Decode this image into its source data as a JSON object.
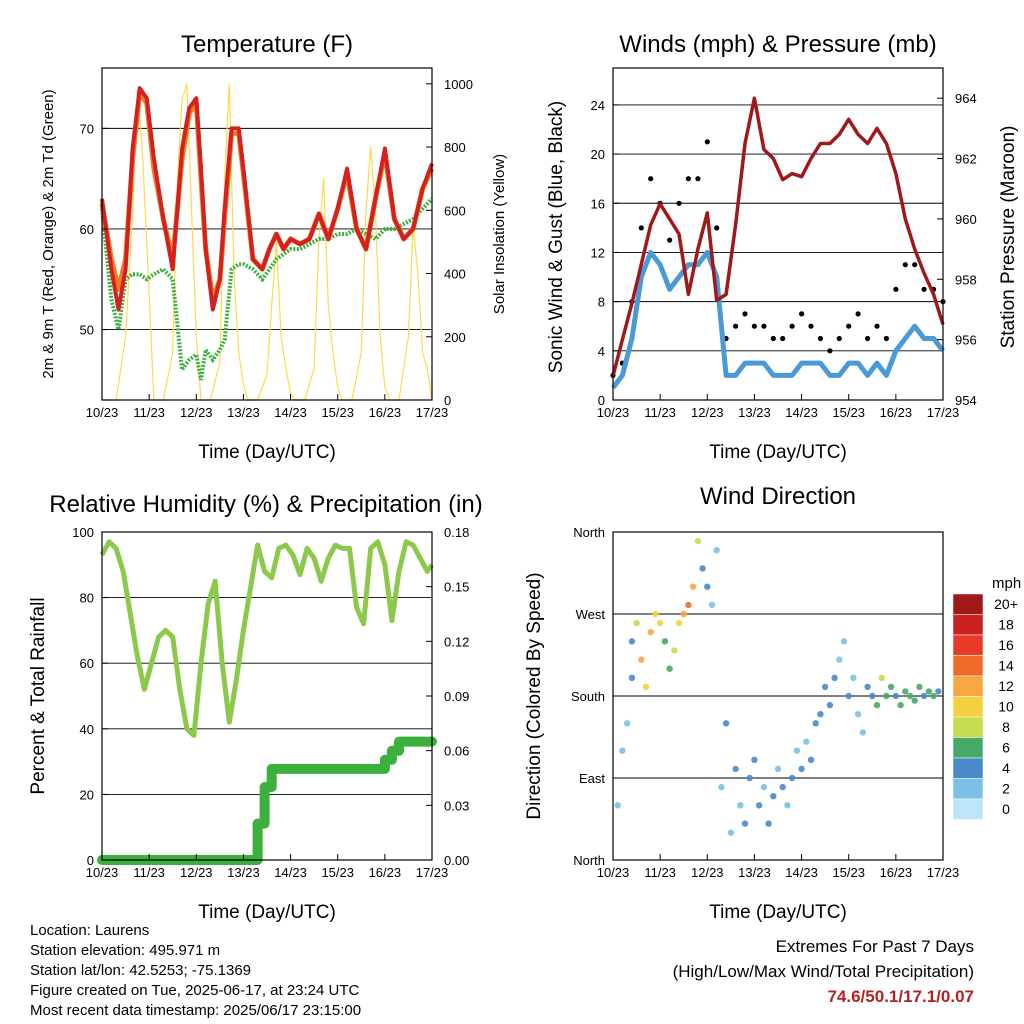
{
  "panels": {
    "temperature": {
      "title": "Temperature (F)",
      "xlabel": "Time (Day/UTC)",
      "ylabel_left": "2m & 9m T (Red, Orange) & 2m Td (Green)",
      "ylabel_right": "Solar Insolation (Yellow)",
      "x_ticks": [
        "10/23",
        "11/23",
        "12/23",
        "13/23",
        "14/23",
        "15/23",
        "16/23",
        "17/23"
      ],
      "y_ticks_left": [
        "50",
        "60",
        "70"
      ],
      "y_ticks_right": [
        "0",
        "200",
        "400",
        "600",
        "800",
        "1000"
      ]
    },
    "winds": {
      "title": "Winds (mph) & Pressure (mb)",
      "xlabel": "Time (Day/UTC)",
      "ylabel_left": "Sonic Wind & Gust (Blue, Black)",
      "ylabel_right": "Station Pressure (Maroon)",
      "x_ticks": [
        "10/23",
        "11/23",
        "12/23",
        "13/23",
        "14/23",
        "15/23",
        "16/23",
        "17/23"
      ],
      "y_ticks_left": [
        "0",
        "4",
        "8",
        "12",
        "16",
        "20",
        "24"
      ],
      "y_ticks_right": [
        "954",
        "956",
        "958",
        "960",
        "962",
        "964"
      ]
    },
    "humidity": {
      "title": "Relative Humidity (%) & Precipitation (in)",
      "xlabel": "Time (Day/UTC)",
      "ylabel_left": "Percent & Total Rainfall",
      "x_ticks": [
        "10/23",
        "11/23",
        "12/23",
        "13/23",
        "14/23",
        "15/23",
        "16/23",
        "17/23"
      ],
      "y_ticks_left": [
        "0",
        "20",
        "40",
        "60",
        "80",
        "100"
      ],
      "y_ticks_right": [
        "0.00",
        "0.03",
        "0.06",
        "0.09",
        "0.12",
        "0.15",
        "0.18"
      ]
    },
    "direction": {
      "title": "Wind Direction",
      "xlabel": "Time (Day/UTC)",
      "ylabel_left": "Direction (Colored By Speed)",
      "x_ticks": [
        "10/23",
        "11/23",
        "12/23",
        "13/23",
        "14/23",
        "15/23",
        "16/23",
        "17/23"
      ],
      "y_ticks_left": [
        "North",
        "East",
        "South",
        "West",
        "North"
      ],
      "legend_title": "mph",
      "legend_labels": [
        "20+",
        "18",
        "16",
        "14",
        "12",
        "10",
        "8",
        "6",
        "4",
        "2",
        "0"
      ]
    }
  },
  "footer": {
    "location": "Location: Laurens",
    "elevation": "Station elevation: 495.971 m",
    "latlon": "Station lat/lon: 42.5253; -75.1369",
    "created": "Figure created on Tue, 2025-06-17, at 23:24 UTC",
    "timestamp": "Most recent data timestamp: 2025/06/17 23:15:00",
    "extremes_title": "Extremes For Past 7 Days",
    "extremes_subtitle": "(High/Low/Max Wind/Total Precipitation)",
    "extremes_values": "74.6/50.1/17.1/0.07"
  },
  "colors": {
    "temp_2m": "#d42020",
    "temp_9m": "#f07a20",
    "dewpoint": "#3cb03c",
    "solar": "#ffd84a",
    "wind": "#4a9ad8",
    "gust": "#000000",
    "pressure": "#a01818",
    "rh": "#8cc84a",
    "precip": "#3cb03c",
    "extremes": "#b22222",
    "speed_scale": [
      "#a01818",
      "#cc2020",
      "#e83a28",
      "#f06a2a",
      "#f8a640",
      "#f4d040",
      "#c8dc50",
      "#48a868",
      "#4a8ac8",
      "#7cc0e8",
      "#bfe6f8"
    ]
  },
  "chart_data": [
    {
      "type": "line",
      "title": "Temperature (F)",
      "xlabel": "Time (Day/UTC)",
      "ylabel": "2m & 9m T (Red, Orange) & 2m Td (Green)",
      "y2label": "Solar Insolation (Yellow)",
      "xlim": [
        10,
        17
      ],
      "ylim": [
        43,
        76
      ],
      "y2lim": [
        0,
        1050
      ],
      "x": [
        10.0,
        10.2,
        10.35,
        10.5,
        10.65,
        10.8,
        10.95,
        11.1,
        11.3,
        11.5,
        11.7,
        11.85,
        12.0,
        12.1,
        12.2,
        12.35,
        12.5,
        12.6,
        12.75,
        12.9,
        13.0,
        13.2,
        13.4,
        13.55,
        13.7,
        13.85,
        14.0,
        14.2,
        14.4,
        14.6,
        14.8,
        15.0,
        15.2,
        15.4,
        15.6,
        15.8,
        16.0,
        16.2,
        16.4,
        16.6,
        16.8,
        17.0
      ],
      "series": [
        {
          "name": "2m T",
          "values": [
            63,
            56,
            52,
            56,
            68,
            74,
            73,
            67,
            61,
            56,
            68,
            72,
            73,
            66,
            58,
            52,
            55,
            62,
            70,
            70,
            66,
            57,
            56,
            58,
            59.5,
            58,
            59,
            58.5,
            59,
            61.5,
            59,
            62,
            66,
            60,
            58,
            63,
            68,
            61,
            59,
            60,
            64,
            66.5
          ]
        },
        {
          "name": "9m T",
          "values": [
            62.5,
            57,
            54,
            57,
            67,
            73.5,
            72.5,
            66,
            61,
            57,
            67,
            71.5,
            72.5,
            65,
            58,
            53,
            55,
            61,
            69.5,
            69.5,
            65.5,
            57,
            56,
            58,
            59.5,
            58,
            59,
            58.5,
            59,
            61.5,
            59,
            62,
            65.5,
            60,
            58,
            63,
            67.5,
            61,
            59,
            60,
            64,
            66
          ]
        },
        {
          "name": "2m Td",
          "values": [
            62,
            53,
            50,
            55,
            55.5,
            55.5,
            55,
            55.5,
            56,
            55,
            46,
            47,
            47.5,
            45,
            48,
            47,
            48,
            49,
            56,
            56.5,
            56.5,
            56,
            55,
            56,
            57,
            57.5,
            58,
            58,
            58.5,
            59,
            59,
            59.5,
            59.5,
            60,
            59.5,
            59,
            60,
            60,
            60.5,
            61,
            62,
            63
          ]
        }
      ],
      "solar_series": {
        "name": "Solar Insolation",
        "x": [
          10.0,
          10.3,
          10.5,
          10.65,
          10.75,
          10.85,
          10.95,
          11.1,
          11.3,
          11.5,
          11.6,
          11.7,
          11.8,
          11.9,
          12.0,
          12.1,
          12.3,
          12.5,
          12.6,
          12.7,
          12.8,
          12.9,
          13.0,
          13.1,
          13.3,
          13.5,
          13.6,
          13.7,
          13.8,
          13.9,
          14.0,
          14.1,
          14.3,
          14.5,
          14.6,
          14.7,
          14.8,
          14.9,
          15.0,
          15.1,
          15.3,
          15.5,
          15.6,
          15.7,
          15.8,
          15.9,
          16.0,
          16.1,
          16.3,
          16.5,
          16.6,
          16.7,
          16.8,
          16.9,
          17.0
        ],
        "values": [
          0,
          0,
          200,
          600,
          980,
          800,
          500,
          0,
          0,
          150,
          700,
          950,
          1000,
          600,
          200,
          0,
          0,
          120,
          700,
          1000,
          400,
          150,
          50,
          0,
          0,
          80,
          300,
          500,
          200,
          100,
          20,
          0,
          0,
          100,
          500,
          700,
          300,
          150,
          40,
          0,
          0,
          150,
          600,
          800,
          600,
          200,
          40,
          0,
          0,
          200,
          550,
          400,
          150,
          100,
          0
        ]
      }
    },
    {
      "type": "line",
      "title": "Winds (mph) & Pressure (mb)",
      "xlabel": "Time (Day/UTC)",
      "ylabel": "Sonic Wind & Gust (Blue, Black)",
      "y2label": "Station Pressure (Maroon)",
      "xlim": [
        10,
        17
      ],
      "ylim": [
        0,
        27
      ],
      "y2lim": [
        954,
        965
      ],
      "x": [
        10.0,
        10.2,
        10.4,
        10.6,
        10.8,
        11.0,
        11.2,
        11.4,
        11.6,
        11.8,
        12.0,
        12.2,
        12.4,
        12.6,
        12.8,
        13.0,
        13.2,
        13.4,
        13.6,
        13.8,
        14.0,
        14.2,
        14.4,
        14.6,
        14.8,
        15.0,
        15.2,
        15.4,
        15.6,
        15.8,
        16.0,
        16.2,
        16.4,
        16.6,
        16.8,
        17.0
      ],
      "series": [
        {
          "name": "Sonic Wind",
          "values": [
            1,
            2,
            5,
            10,
            12,
            11,
            9,
            10,
            11,
            11,
            12,
            10,
            2,
            2,
            3,
            3,
            3,
            2,
            2,
            2,
            3,
            3,
            3,
            2,
            2,
            3,
            3,
            2,
            3,
            2,
            4,
            5,
            6,
            5,
            5,
            4
          ]
        },
        {
          "name": "Gust",
          "values": [
            2,
            3,
            8,
            14,
            18,
            16,
            13,
            16,
            18,
            18,
            21,
            14,
            5,
            6,
            7,
            6,
            6,
            5,
            5,
            6,
            7,
            6,
            5,
            4,
            5,
            6,
            7,
            5,
            6,
            5,
            9,
            11,
            11,
            9,
            9,
            8
          ]
        },
        {
          "name": "Station Pressure",
          "values": [
            954.8,
            956.0,
            957.2,
            958.5,
            959.8,
            960.5,
            960.0,
            959.5,
            957.5,
            959.0,
            960.2,
            957.3,
            957.5,
            959.8,
            962.5,
            964.0,
            962.3,
            962.0,
            961.3,
            961.5,
            961.4,
            962.0,
            962.5,
            962.5,
            962.8,
            963.3,
            962.8,
            962.5,
            963.0,
            962.5,
            961.5,
            960.0,
            959.0,
            958.2,
            957.5,
            956.5
          ]
        }
      ]
    },
    {
      "type": "line",
      "title": "Relative Humidity (%) & Precipitation (in)",
      "xlabel": "Time (Day/UTC)",
      "ylabel": "Percent & Total Rainfall",
      "xlim": [
        10,
        17
      ],
      "ylim": [
        0,
        100
      ],
      "y2lim": [
        0,
        0.18
      ],
      "x": [
        10.0,
        10.15,
        10.3,
        10.45,
        10.6,
        10.75,
        10.9,
        11.05,
        11.2,
        11.35,
        11.5,
        11.65,
        11.8,
        11.95,
        12.1,
        12.25,
        12.4,
        12.55,
        12.7,
        12.85,
        13.0,
        13.15,
        13.3,
        13.45,
        13.6,
        13.75,
        13.9,
        14.05,
        14.2,
        14.35,
        14.5,
        14.65,
        14.8,
        14.95,
        15.1,
        15.25,
        15.4,
        15.55,
        15.7,
        15.85,
        16.0,
        16.15,
        16.3,
        16.45,
        16.6,
        16.75,
        16.9,
        17.0
      ],
      "series": [
        {
          "name": "Relative Humidity",
          "values": [
            93,
            97,
            95,
            88,
            75,
            62,
            52,
            60,
            68,
            70,
            68,
            52,
            40,
            38,
            60,
            78,
            85,
            60,
            42,
            55,
            70,
            83,
            96,
            88,
            86,
            95,
            96,
            93,
            87,
            95,
            92,
            85,
            92,
            96,
            95,
            95,
            77,
            72,
            95,
            97,
            90,
            73,
            88,
            97,
            96,
            92,
            88,
            90
          ]
        },
        {
          "name": "Total Rainfall",
          "values": [
            0,
            0,
            0,
            0,
            0,
            0,
            0,
            0,
            0,
            0,
            0,
            0,
            0,
            0,
            0,
            0,
            0,
            0,
            0,
            0,
            0,
            0,
            0.02,
            0.04,
            0.05,
            0.05,
            0.05,
            0.05,
            0.05,
            0.05,
            0.05,
            0.05,
            0.05,
            0.05,
            0.05,
            0.05,
            0.05,
            0.05,
            0.05,
            0.05,
            0.055,
            0.06,
            0.065,
            0.065,
            0.065,
            0.065,
            0.065,
            0.065
          ]
        }
      ]
    },
    {
      "type": "scatter",
      "title": "Wind Direction",
      "xlabel": "Time (Day/UTC)",
      "ylabel": "Direction (Colored By Speed)",
      "xlim": [
        10,
        17
      ],
      "ylim": [
        0,
        360
      ],
      "y_tick_values": [
        0,
        90,
        180,
        270,
        360
      ],
      "legend_title": "mph",
      "x": [
        10.1,
        10.2,
        10.3,
        10.4,
        10.4,
        10.5,
        10.6,
        10.7,
        10.8,
        10.9,
        11.0,
        11.1,
        11.2,
        11.3,
        11.4,
        11.5,
        11.6,
        11.7,
        11.8,
        11.9,
        12.0,
        12.1,
        12.2,
        12.3,
        12.4,
        12.5,
        12.6,
        12.7,
        12.8,
        12.9,
        13.0,
        13.1,
        13.2,
        13.3,
        13.4,
        13.5,
        13.6,
        13.7,
        13.8,
        13.9,
        14.0,
        14.1,
        14.2,
        14.3,
        14.4,
        14.5,
        14.6,
        14.7,
        14.8,
        14.9,
        15.0,
        15.1,
        15.2,
        15.3,
        15.4,
        15.5,
        15.6,
        15.7,
        15.8,
        15.9,
        16.0,
        16.1,
        16.2,
        16.3,
        16.4,
        16.5,
        16.6,
        16.7,
        16.8,
        16.9
      ],
      "values": [
        60,
        120,
        150,
        200,
        240,
        260,
        220,
        190,
        250,
        270,
        260,
        240,
        210,
        230,
        260,
        270,
        280,
        300,
        350,
        320,
        300,
        280,
        340,
        80,
        150,
        30,
        100,
        60,
        40,
        90,
        110,
        60,
        80,
        40,
        70,
        100,
        80,
        60,
        90,
        120,
        100,
        130,
        110,
        150,
        160,
        190,
        170,
        200,
        220,
        240,
        180,
        200,
        160,
        140,
        190,
        180,
        170,
        200,
        180,
        190,
        180,
        170,
        185,
        180,
        175,
        190,
        180,
        185,
        180,
        185
      ],
      "speeds": [
        1,
        1,
        2,
        3,
        4,
        8,
        12,
        9,
        11,
        10,
        9,
        6,
        5,
        7,
        10,
        12,
        14,
        12,
        8,
        4,
        3,
        2,
        1,
        2,
        3,
        2,
        3,
        2,
        4,
        3,
        3,
        4,
        2,
        3,
        3,
        2,
        3,
        2,
        3,
        2,
        3,
        2,
        3,
        3,
        4,
        3,
        4,
        3,
        2,
        2,
        3,
        2,
        1,
        2,
        3,
        4,
        6,
        7,
        6,
        5,
        4,
        5,
        6,
        5,
        6,
        5,
        4,
        6,
        5,
        4
      ]
    }
  ]
}
